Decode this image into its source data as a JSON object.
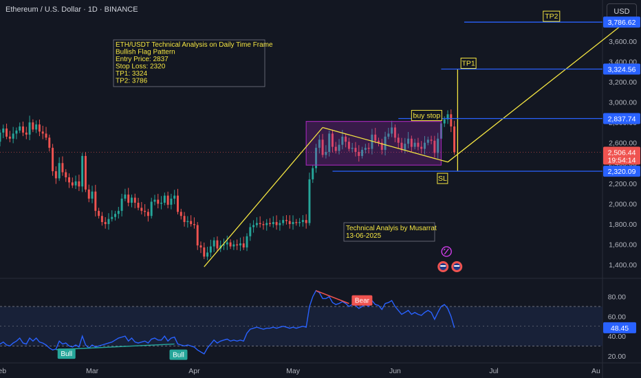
{
  "header": {
    "title": "Ethereum / U.S. Dollar · 1D · BINANCE",
    "currency_button": "USD"
  },
  "colors": {
    "background": "#131722",
    "up_candle": "#26a69a",
    "down_candle": "#ef5350",
    "annotation_line": "#f5e642",
    "level_line": "#2962ff",
    "flag_box": "#9c27b0",
    "rsi_line": "#2962ff",
    "rsi_band": "#1e2a4a",
    "bull_label": "#26a69a",
    "bear_label": "#ef5350"
  },
  "chart_data": {
    "type": "candlestick",
    "title": "ETH/USDT Technical Analysis on Daily Time Frame",
    "x_labels": [
      "Feb",
      "Mar",
      "Apr",
      "May",
      "Jun",
      "Jul",
      "Au"
    ],
    "x_range": [
      "2025-02-01",
      "2025-08-03"
    ],
    "price_axis": {
      "ticks": [
        "1,800.00",
        "2,000.00",
        "2,200.00",
        "2,400.00",
        "2,600.00",
        "2,800.00",
        "3,000.00",
        "3,200.00",
        "3,400.00",
        "3,600.00",
        "1,400.00",
        "1,600.00"
      ],
      "ylim": [
        1300,
        3950
      ]
    },
    "price_axis_top_partial": "3,800.00",
    "level_labels": [
      {
        "label": "3,786.62",
        "value": 3786.62
      },
      {
        "label": "3,324.56",
        "value": 3324.56
      },
      {
        "label": "2,837.74",
        "value": 2837.74
      },
      {
        "label": "2,320.09",
        "value": 2320.09
      }
    ],
    "current_price": {
      "label": "2,506.44",
      "countdown": "19:54:14",
      "value": 2506.44
    },
    "annotation_box": {
      "lines": [
        "ETH/USDT Technical Analysis on Daily Time Frame",
        "Bullish Flag Pattern",
        "Entry Price: 2837",
        "Stop Loss: 2320",
        "TP1: 3324",
        "TP2: 3786"
      ]
    },
    "author_box": {
      "lines": [
        "Technical Analyis by Musarrat",
        "13-06-2025"
      ]
    },
    "level_tags": {
      "tp2": "TP2",
      "tp1": "TP1",
      "buy_stop": "buy stop",
      "sl": "SL"
    },
    "candles_close": [
      3300,
      3180,
      2840,
      2760,
      2700,
      2650,
      2730,
      2690,
      2720,
      2610,
      2700,
      2740,
      2660,
      2640,
      2690,
      2720,
      2760,
      2700,
      2680,
      2800,
      2730,
      2780,
      2710,
      2690,
      2650,
      2550,
      2320,
      2250,
      2400,
      2310,
      2260,
      2210,
      2180,
      2220,
      2170,
      2470,
      2140,
      2050,
      2120,
      1930,
      1880,
      1820,
      1800,
      1850,
      1870,
      1900,
      1930,
      2050,
      2090,
      2010,
      2060,
      2010,
      1960,
      1930,
      1920,
      1880,
      2020,
      2040,
      2000,
      2010,
      2080,
      1990,
      2050,
      2080,
      1920,
      1880,
      1820,
      1830,
      1800,
      1790,
      1590,
      1570,
      1480,
      1520,
      1580,
      1640,
      1560,
      1590,
      1600,
      1620,
      1580,
      1600,
      1590,
      1610,
      1570,
      1680,
      1770,
      1790,
      1810,
      1800,
      1790,
      1810,
      1800,
      1820,
      1790,
      1810,
      1840,
      1830,
      1800,
      1820,
      1810,
      1820,
      1840,
      1810,
      2240,
      2350,
      2550,
      2630,
      2480,
      2510,
      2690,
      2560,
      2520,
      2580,
      2660,
      2610,
      2540,
      2550,
      2510,
      2470,
      2530,
      2550,
      2540,
      2680,
      2620,
      2600,
      2530,
      2660,
      2690,
      2750,
      2650,
      2600,
      2530,
      2590,
      2640,
      2560,
      2600,
      2560,
      2540,
      2600,
      2630,
      2620,
      2500,
      2640,
      2790,
      2830,
      2880,
      2760,
      2506
    ],
    "rsi": {
      "ticks": [
        "20.00",
        "40.00",
        "60.00",
        "80.00"
      ],
      "ylim": [
        15,
        95
      ],
      "band": [
        30,
        70
      ],
      "last_label": "48.45",
      "last_value": 48.45,
      "labels": {
        "bull": "Bull",
        "bear": "Bear"
      },
      "values": [
        41,
        38,
        33,
        32,
        30,
        31,
        33,
        30,
        34,
        29,
        32,
        34,
        31,
        30,
        33,
        35,
        38,
        33,
        32,
        38,
        35,
        38,
        34,
        33,
        31,
        28,
        26,
        27,
        35,
        32,
        33,
        30,
        29,
        31,
        29,
        40,
        31,
        28,
        31,
        29,
        30,
        31,
        32,
        33,
        34,
        36,
        38,
        39,
        40,
        35,
        38,
        34,
        33,
        34,
        35,
        33,
        37,
        38,
        36,
        36,
        40,
        35,
        38,
        39,
        32,
        31,
        30,
        31,
        30,
        29,
        26,
        24,
        22,
        28,
        32,
        36,
        33,
        35,
        36,
        37,
        35,
        36,
        35,
        36,
        35,
        43,
        47,
        48,
        49,
        48,
        47,
        48,
        48,
        49,
        48,
        49,
        50,
        49,
        48,
        49,
        48,
        49,
        50,
        49,
        70,
        80,
        86,
        84,
        78,
        78,
        80,
        74,
        72,
        73,
        75,
        73,
        70,
        72,
        71,
        68,
        70,
        72,
        70,
        76,
        72,
        71,
        67,
        73,
        74,
        76,
        70,
        66,
        62,
        64,
        66,
        62,
        64,
        62,
        61,
        64,
        66,
        64,
        57,
        64,
        70,
        72,
        68,
        60,
        48.45
      ]
    }
  }
}
